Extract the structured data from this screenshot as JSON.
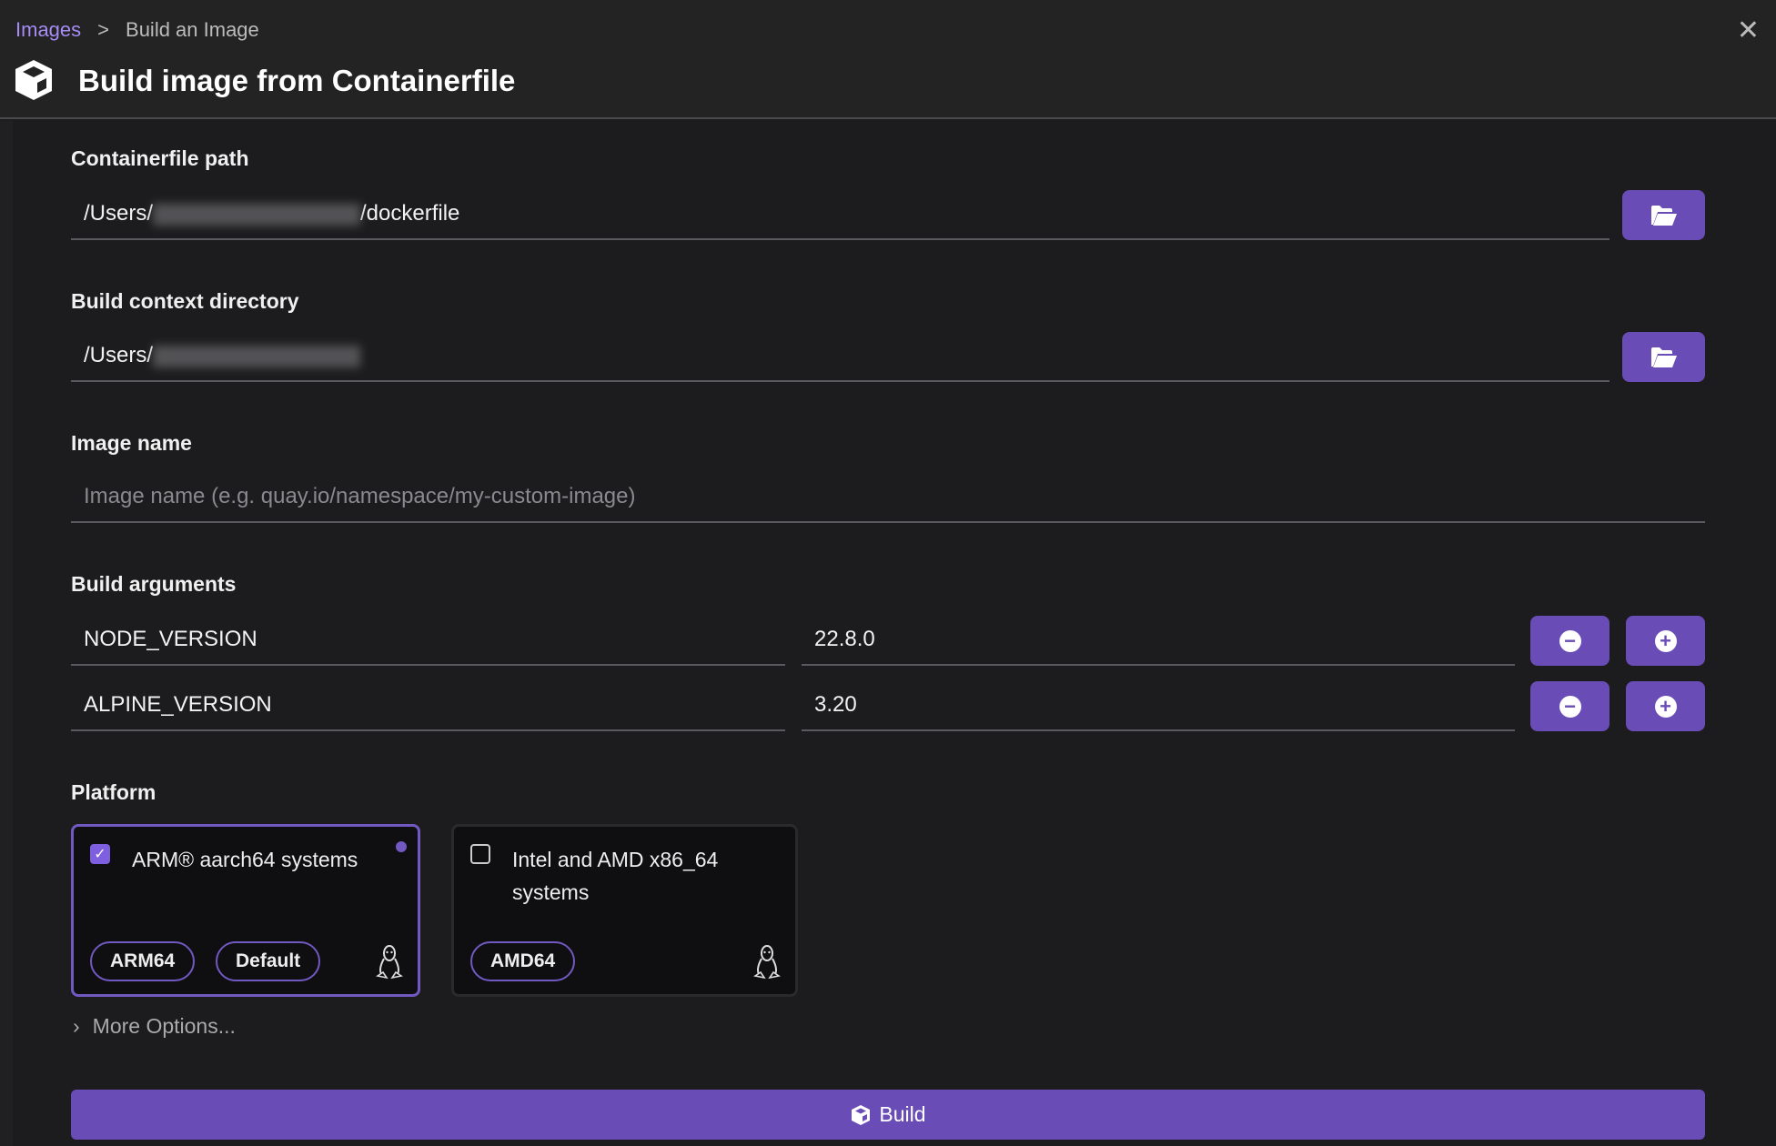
{
  "breadcrumb": {
    "parent": "Images",
    "separator": ">",
    "current": "Build an Image"
  },
  "header": {
    "title": "Build image from Containerfile"
  },
  "containerfile": {
    "label": "Containerfile path",
    "value_prefix": "/Users/",
    "value_suffix": "/dockerfile"
  },
  "context": {
    "label": "Build context directory",
    "value_prefix": "/Users/"
  },
  "image_name": {
    "label": "Image name",
    "placeholder": "Image name (e.g. quay.io/namespace/my-custom-image)",
    "value": ""
  },
  "build_args": {
    "label": "Build arguments",
    "rows": [
      {
        "key": "NODE_VERSION",
        "value": "22.8.0"
      },
      {
        "key": "ALPINE_VERSION",
        "value": "3.20"
      }
    ]
  },
  "platform": {
    "label": "Platform",
    "options": [
      {
        "title": "ARM® aarch64 systems",
        "checked": true,
        "tags": [
          "ARM64",
          "Default"
        ],
        "icon": "linux-icon"
      },
      {
        "title": "Intel and AMD x86_64 systems",
        "checked": false,
        "tags": [
          "AMD64"
        ],
        "icon": "linux-icon"
      }
    ]
  },
  "more_options": "More Options...",
  "build_button": "Build",
  "colors": {
    "accent": "#6a4cb6",
    "link": "#a58cf5",
    "background": "#1c1c1e"
  }
}
